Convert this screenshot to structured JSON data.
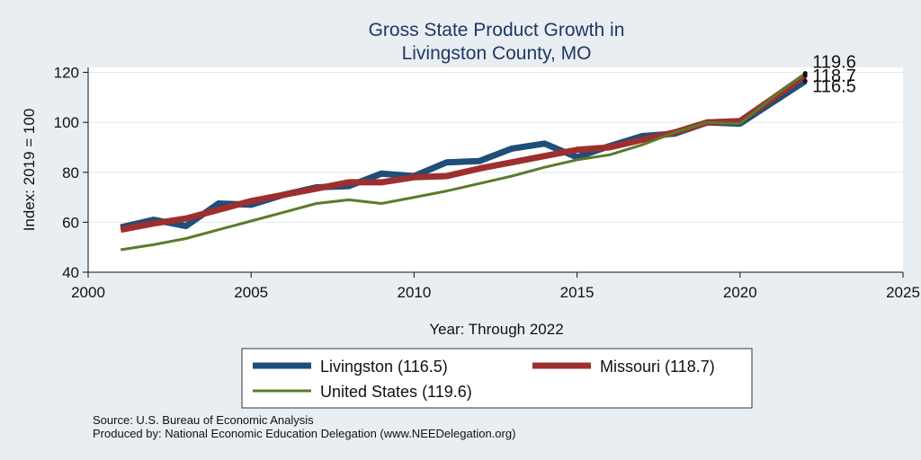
{
  "chart_data": {
    "type": "line",
    "title": [
      "Gross State Product Growth in",
      "Livingston County, MO"
    ],
    "xlabel": "Year: Through 2022",
    "ylabel": "Index: 2019 = 100",
    "xlim": [
      2000,
      2025
    ],
    "ylim": [
      40,
      122
    ],
    "xticks": [
      2000,
      2005,
      2010,
      2015,
      2020,
      2025
    ],
    "yticks": [
      40,
      60,
      80,
      100,
      120
    ],
    "grid": "horizontal",
    "legend_position": "bottom",
    "x": [
      2001,
      2002,
      2003,
      2004,
      2005,
      2006,
      2007,
      2008,
      2009,
      2010,
      2011,
      2012,
      2013,
      2014,
      2015,
      2016,
      2017,
      2018,
      2019,
      2020,
      2021,
      2022
    ],
    "series": [
      {
        "name": "Livingston",
        "legend_label": "Livingston  (116.5)",
        "color": "#1f4e79",
        "width": 7,
        "values": [
          58,
          61,
          58.5,
          67.5,
          67,
          71,
          74,
          74.5,
          79.5,
          78.5,
          84,
          84.5,
          89.5,
          91.5,
          86,
          90.5,
          94.5,
          95.5,
          100,
          99.5,
          108,
          116.5
        ],
        "end_label": "116.5"
      },
      {
        "name": "Missouri",
        "legend_label": "Missouri (118.7)",
        "color": "#9e2f2f",
        "width": 7,
        "values": [
          57,
          59.5,
          61.5,
          65,
          68.5,
          71,
          73.5,
          76,
          76,
          78,
          78.5,
          81.5,
          84,
          86.5,
          89,
          90,
          93,
          96,
          100,
          100.5,
          109.5,
          118.7
        ],
        "end_label": "118.7"
      },
      {
        "name": "United States",
        "legend_label": "United States (119.6)",
        "color": "#5b7a2c",
        "width": 3,
        "values": [
          49,
          51,
          53.5,
          57,
          60.5,
          64,
          67.5,
          69,
          67.5,
          70,
          72.5,
          75.5,
          78.5,
          82,
          85,
          87,
          91,
          96,
          100,
          99.5,
          110,
          119.6
        ],
        "end_label": "119.6"
      }
    ]
  },
  "notes": {
    "source": "Source: U.S. Bureau of Economic Analysis",
    "produced_by": "Produced by: National Economic Education Delegation (www.NEEDelegation.org)"
  },
  "colors": {
    "background": "#e9eef3",
    "plot_background": "#ffffff",
    "title": "#1f3864"
  }
}
